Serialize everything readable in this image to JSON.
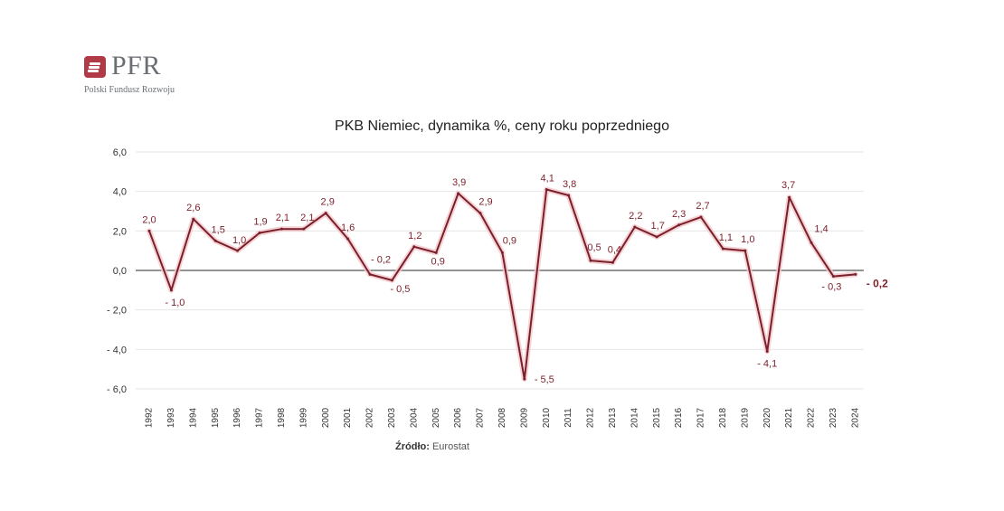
{
  "logo": {
    "name": "PFR",
    "subtitle": "Polski Fundusz Rozwoju"
  },
  "source": {
    "label": "Źródło:",
    "value": "Eurostat"
  },
  "colors": {
    "line": "#7b1f2a",
    "label": "#7b1f2a",
    "axis": "#555555",
    "grid": "#e6e6e6",
    "brand": "#b03a46"
  },
  "chart_data": {
    "type": "line",
    "title": "PKB Niemiec, dynamika %, ceny roku poprzedniego",
    "xlabel": "",
    "ylabel": "",
    "ylim": [
      -6,
      6
    ],
    "yticks": [
      "6,0",
      "4,0",
      "2,0",
      "0,0",
      "- 2,0",
      "- 4,0",
      "- 6,0"
    ],
    "grid": true,
    "legend": "none",
    "categories": [
      "1992",
      "1993",
      "1994",
      "1995",
      "1996",
      "1997",
      "1998",
      "1999",
      "2000",
      "2001",
      "2002",
      "2003",
      "2004",
      "2005",
      "2006",
      "2007",
      "2008",
      "2009",
      "2010",
      "2011",
      "2012",
      "2013",
      "2014",
      "2015",
      "2016",
      "2017",
      "2018",
      "2019",
      "2020",
      "2021",
      "2022",
      "2023",
      "2024"
    ],
    "values": [
      2.0,
      -1.0,
      2.6,
      1.5,
      1.0,
      1.9,
      2.1,
      2.1,
      2.9,
      1.6,
      -0.2,
      -0.5,
      1.2,
      0.9,
      3.9,
      2.9,
      0.9,
      -5.5,
      4.1,
      3.8,
      0.5,
      0.4,
      2.2,
      1.7,
      2.3,
      2.7,
      1.1,
      1.0,
      -4.1,
      3.7,
      1.4,
      -0.3,
      -0.2
    ],
    "data_labels": [
      "2,0",
      "- 1,0",
      "2,6",
      "1,5",
      "1,0",
      "1,9",
      "2,1",
      "2,1",
      "2,9",
      "1,6",
      "- 0,2",
      "- 0,5",
      "1,2",
      "0,9",
      "3,9",
      "2,9",
      "0,9",
      "- 5,5",
      "4,1",
      "3,8",
      "0,5",
      "0,4",
      "2,2",
      "1,7",
      "2,3",
      "2,7",
      "1,1",
      "1,0",
      "- 4,1",
      "3,7",
      "1,4",
      "- 0,3",
      "- 0,2"
    ]
  }
}
